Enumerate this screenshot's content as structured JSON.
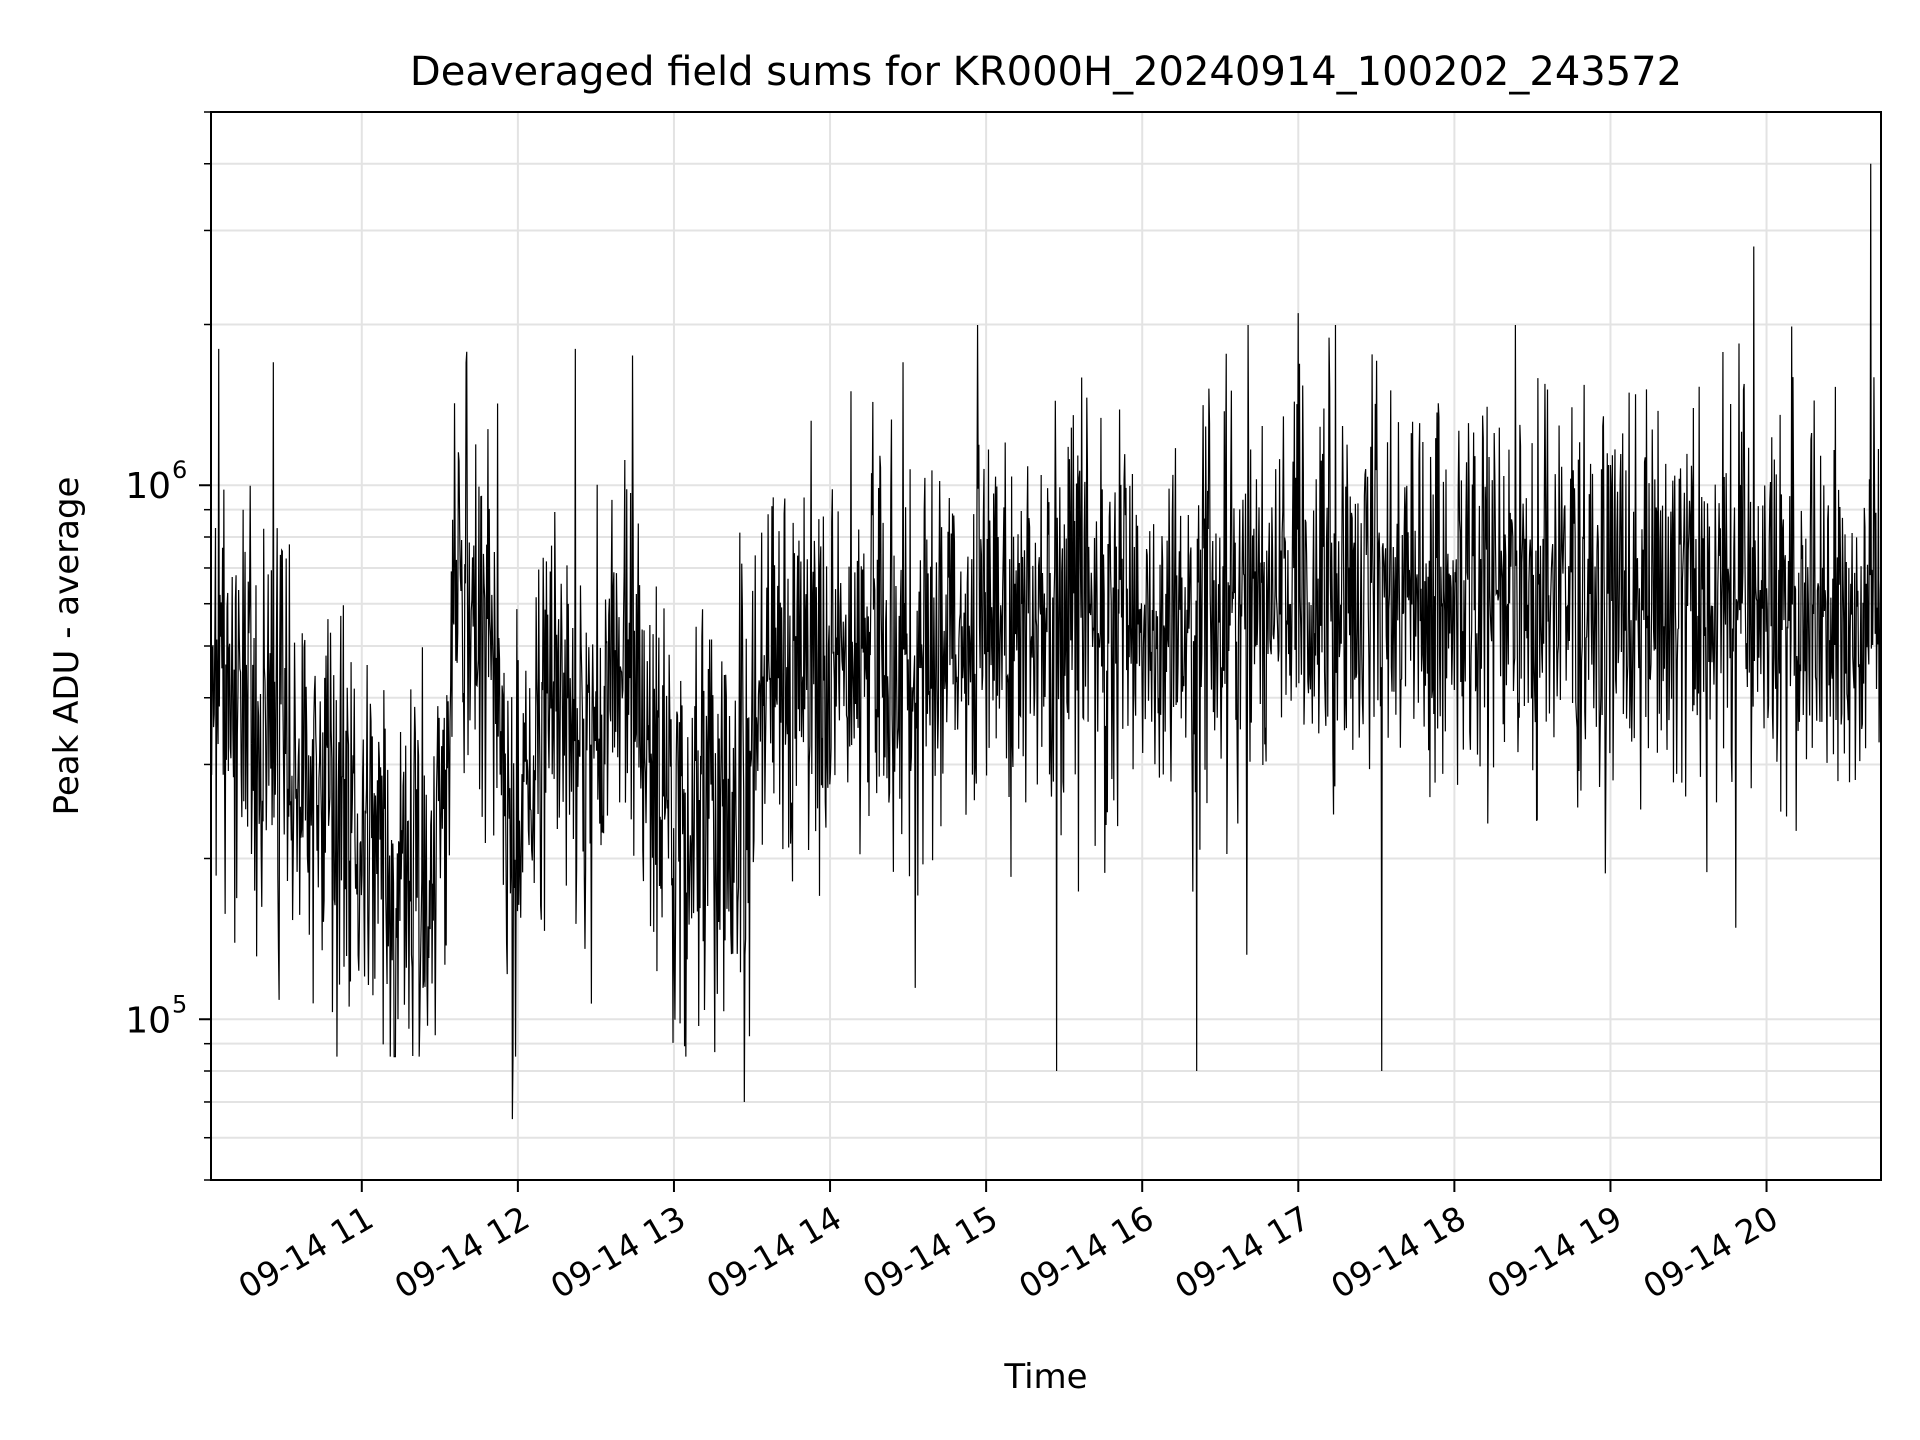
{
  "chart_data": {
    "type": "line",
    "title": "Deaveraged field sums for KR000H_20240914_100202_243572",
    "xlabel": "Time",
    "ylabel": "Peak ADU - average",
    "y_scale": "log",
    "ylim": [
      50000,
      5000000
    ],
    "x_start": "09-14 10:02:02",
    "x_end": "09-14 20:44:00",
    "x_ticks": [
      "09-14 11",
      "09-14 12",
      "09-14 13",
      "09-14 14",
      "09-14 15",
      "09-14 16",
      "09-14 17",
      "09-14 18",
      "09-14 19",
      "09-14 20"
    ],
    "y_ticks": [
      {
        "value": 100000,
        "base": "10",
        "exp": "5"
      },
      {
        "value": 1000000,
        "base": "10",
        "exp": "6"
      }
    ],
    "grid": true,
    "line_color": "#000000",
    "series": [
      {
        "profile_x": [
          "09-14 10:02",
          "09-14 10:30",
          "09-14 10:50",
          "09-14 11:10",
          "09-14 11:30",
          "09-14 11:35",
          "09-14 11:50",
          "09-14 11:58",
          "09-14 12:10",
          "09-14 12:25",
          "09-14 12:45",
          "09-14 13:00",
          "09-14 13:20",
          "09-14 13:30",
          "09-14 13:35",
          "09-14 13:50",
          "09-14 14:00",
          "09-14 14:30",
          "09-14 15:00",
          "09-14 15:30",
          "09-14 16:00",
          "09-14 16:30",
          "09-14 17:00",
          "09-14 17:30",
          "09-14 18:00",
          "09-14 18:30",
          "09-14 19:00",
          "09-14 19:30",
          "09-14 20:00",
          "09-14 20:30",
          "09-14 20:44"
        ],
        "profile_y": [
          420000,
          350000,
          260000,
          180000,
          200000,
          650000,
          580000,
          190000,
          420000,
          330000,
          480000,
          210000,
          260000,
          280000,
          450000,
          380000,
          420000,
          470000,
          520000,
          560000,
          540000,
          580000,
          600000,
          620000,
          640000,
          640000,
          620000,
          600000,
          620000,
          520000,
          580000
        ],
        "spikes": [
          {
            "x": "09-14 10:05",
            "y": 1800000
          },
          {
            "x": "09-14 10:26",
            "y": 1700000
          },
          {
            "x": "09-14 12:22",
            "y": 1800000
          },
          {
            "x": "09-14 12:44",
            "y": 1750000
          },
          {
            "x": "09-14 14:08",
            "y": 1500000
          },
          {
            "x": "09-14 17:00",
            "y": 2100000
          },
          {
            "x": "09-14 17:32",
            "y": 1900000
          },
          {
            "x": "09-14 19:55",
            "y": 2800000
          },
          {
            "x": "09-14 20:40",
            "y": 4000000
          },
          {
            "x": "09-14 11:58",
            "y": 65000
          },
          {
            "x": "09-14 13:27",
            "y": 70000
          },
          {
            "x": "09-14 15:27",
            "y": 80000
          },
          {
            "x": "09-14 16:21",
            "y": 80000
          },
          {
            "x": "09-14 17:32",
            "y": 80000
          }
        ]
      }
    ]
  }
}
